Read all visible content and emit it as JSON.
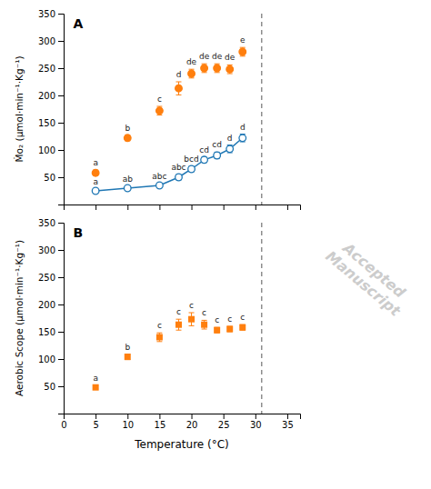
{
  "chart_data": [
    {
      "type": "scatter",
      "title": "A",
      "x": [
        5,
        10,
        15,
        18,
        20,
        22,
        24,
        26,
        28
      ],
      "xlim": [
        0,
        37
      ],
      "xticks": [
        0,
        5,
        10,
        15,
        20,
        25,
        30,
        35
      ],
      "ylim": [
        0,
        350
      ],
      "yticks": [
        50,
        100,
        150,
        200,
        250,
        300,
        350
      ],
      "ylabel": "Ṁo₂ (μmol·min⁻¹·Kg⁻¹)",
      "tick_labels": "y",
      "vlines": [
        31
      ],
      "series": [
        {
          "marker": "circle-open",
          "line_style": "solid",
          "values": [
            25,
            30,
            35,
            50,
            65,
            82,
            90,
            102,
            122
          ],
          "errors": [
            3,
            3,
            3,
            5,
            5,
            5,
            6,
            7,
            7
          ],
          "labels": [
            "a",
            "ab",
            "abc",
            "abc",
            "bcd",
            "cd",
            "cd",
            "d",
            "d"
          ]
        },
        {
          "marker": "circle",
          "line_style": "none",
          "values": [
            58,
            122,
            172,
            213,
            240,
            250,
            250,
            248,
            280
          ],
          "errors": [
            5,
            5,
            8,
            12,
            8,
            8,
            8,
            8,
            8
          ],
          "labels": [
            "a",
            "b",
            "c",
            "d",
            "de",
            "de",
            "de",
            "de",
            "e"
          ]
        }
      ]
    },
    {
      "type": "scatter",
      "title": "B",
      "x": [
        5,
        10,
        15,
        18,
        20,
        22,
        24,
        26,
        28
      ],
      "xlim": [
        0,
        37
      ],
      "xticks": [
        0,
        5,
        10,
        15,
        20,
        25,
        30,
        35
      ],
      "xlabel": "Temperature (°C)",
      "ylim": [
        0,
        350
      ],
      "yticks": [
        50,
        100,
        150,
        200,
        250,
        300,
        350
      ],
      "ylabel": "Aerobic Scope (μmol·min⁻¹·Kg⁻¹)",
      "vlines": [
        31
      ],
      "series": [
        {
          "marker": "square",
          "line_style": "none",
          "values": [
            48,
            104,
            140,
            163,
            173,
            163,
            153,
            155,
            158
          ],
          "errors": [
            3,
            5,
            8,
            10,
            12,
            8,
            5,
            5,
            5
          ],
          "labels": [
            "a",
            "b",
            "c",
            "c",
            "c",
            "c",
            "c",
            "c",
            "c"
          ]
        }
      ]
    }
  ],
  "watermark": [
    "Accepted",
    "Manuscript"
  ]
}
